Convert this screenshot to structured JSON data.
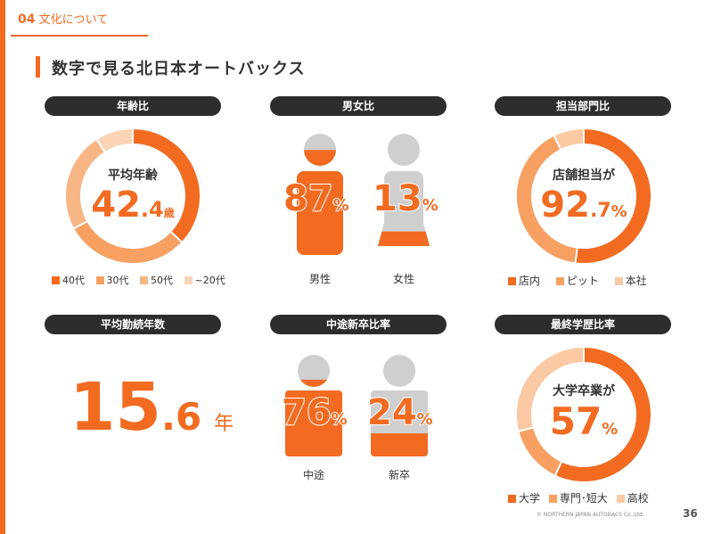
{
  "header": {
    "section_number": "04",
    "section_title": "文化について",
    "page_title": "数字で見る北日本オートバックス"
  },
  "panels": {
    "age": {
      "title": "年齢比",
      "center_label": "平均年齢",
      "value_int": "42",
      "value_dec": ".4",
      "unit": "歳",
      "legend": [
        "40代",
        "30代",
        "50代",
        "~20代"
      ]
    },
    "gender": {
      "title": "男女比",
      "male": {
        "value": "87",
        "unit": "%",
        "label": "男性"
      },
      "female": {
        "value": "13",
        "unit": "%",
        "label": "女性"
      }
    },
    "department": {
      "title": "担当部門比",
      "center_label": "店舗担当が",
      "value_int": "92",
      "value_dec": ".7",
      "unit": "%",
      "legend": [
        "店内",
        "ピット",
        "本社"
      ]
    },
    "tenure": {
      "title": "平均勤続年数",
      "value_int": "15",
      "value_dec": ".6",
      "unit": "年"
    },
    "hiring": {
      "title": "中途新卒比率",
      "midcareer": {
        "value": "76",
        "unit": "%",
        "label": "中途"
      },
      "newgrad": {
        "value": "24",
        "unit": "%",
        "label": "新卒"
      }
    },
    "education": {
      "title": "最終学歴比率",
      "center_label": "大学卒業が",
      "value_int": "57",
      "unit": "%",
      "legend": [
        "大学",
        "専門･短大",
        "高校"
      ]
    }
  },
  "chart_data": [
    {
      "type": "pie",
      "categories": [
        "40代",
        "30代",
        "50代",
        "~20代"
      ],
      "values": [
        37,
        30,
        24,
        9
      ]
    },
    {
      "type": "bar",
      "categories": [
        "男性",
        "女性"
      ],
      "values": [
        87,
        13
      ]
    },
    {
      "type": "pie",
      "categories": [
        "店内",
        "ピット",
        "本社"
      ],
      "values": [
        52,
        40.7,
        7.3
      ]
    },
    {
      "type": "bar",
      "categories": [
        "中途",
        "新卒"
      ],
      "values": [
        76,
        24
      ]
    },
    {
      "type": "pie",
      "categories": [
        "大学",
        "専門･短大",
        "高校"
      ],
      "values": [
        57,
        14,
        29
      ]
    }
  ],
  "colors": {
    "accent": "#f26b21",
    "mid": "#f7a062",
    "light": "#fbc9a4",
    "gray": "#cfcfcf",
    "pill": "#2d2d2d"
  },
  "footer": {
    "copyright": "© NORTHERN JAPAN AUTOBACS Co.,Ltd.",
    "page_number": "36"
  }
}
